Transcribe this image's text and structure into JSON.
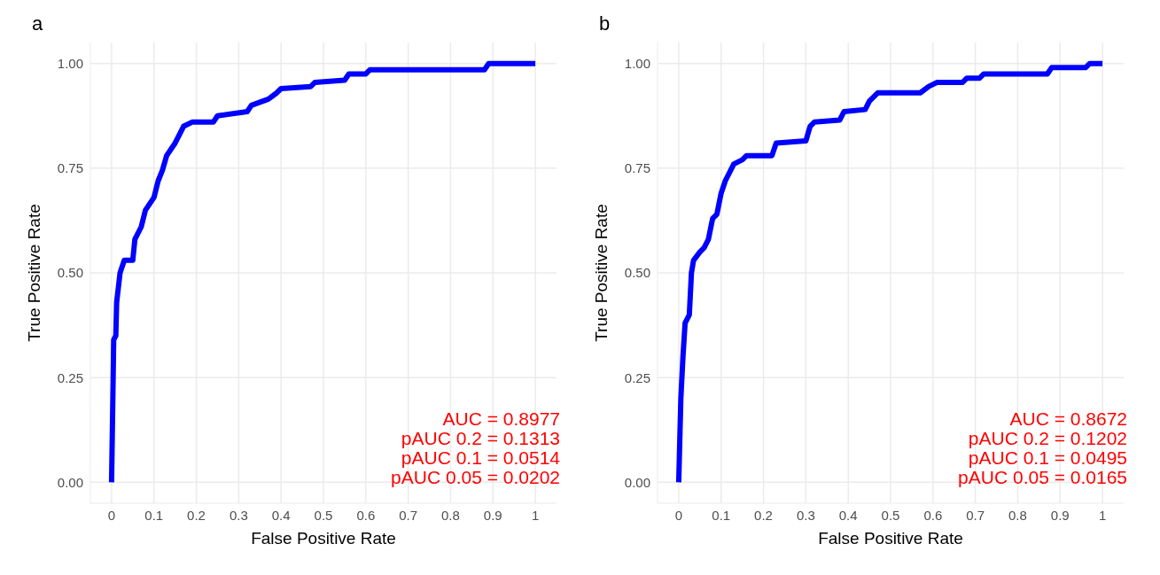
{
  "chart_data": [
    {
      "type": "line",
      "title": "a",
      "xlabel": "False Positive Rate",
      "ylabel": "True Positive Rate",
      "x": [
        0,
        0.003,
        0.005,
        0.01,
        0.012,
        0.02,
        0.03,
        0.05,
        0.055,
        0.07,
        0.08,
        0.1,
        0.11,
        0.12,
        0.13,
        0.15,
        0.17,
        0.19,
        0.24,
        0.25,
        0.32,
        0.33,
        0.37,
        0.39,
        0.4,
        0.47,
        0.48,
        0.55,
        0.56,
        0.6,
        0.61,
        0.88,
        0.89,
        1
      ],
      "series": [
        {
          "color": "#0000ff",
          "values": [
            0,
            0.2,
            0.34,
            0.35,
            0.43,
            0.5,
            0.53,
            0.53,
            0.58,
            0.61,
            0.65,
            0.68,
            0.72,
            0.745,
            0.78,
            0.81,
            0.85,
            0.86,
            0.86,
            0.875,
            0.885,
            0.9,
            0.915,
            0.93,
            0.94,
            0.945,
            0.955,
            0.96,
            0.975,
            0.975,
            0.985,
            0.985,
            1,
            1
          ]
        }
      ],
      "xlim": [
        -0.05,
        1.05
      ],
      "ylim": [
        -0.05,
        1.05
      ],
      "xticks": [
        0,
        0.1,
        0.2,
        0.3,
        0.4,
        0.5,
        0.6,
        0.7,
        0.8,
        0.9,
        1
      ],
      "yticks": [
        {
          "value": 0,
          "label": "0.00"
        },
        {
          "value": 0.25,
          "label": "0.25"
        },
        {
          "value": 0.5,
          "label": "0.50"
        },
        {
          "value": 0.75,
          "label": "0.75"
        },
        {
          "value": 1,
          "label": "1.00"
        }
      ],
      "grid": true,
      "marker": "none",
      "line_style": "solid",
      "annotations": [
        "AUC = 0.8977",
        "pAUC 0.2 = 0.1313",
        "pAUC 0.1 = 0.0514",
        "pAUC 0.05 = 0.0202"
      ]
    },
    {
      "type": "line",
      "title": "b",
      "xlabel": "False Positive Rate",
      "ylabel": "True Positive Rate",
      "x": [
        0,
        0.005,
        0.01,
        0.015,
        0.025,
        0.03,
        0.035,
        0.05,
        0.06,
        0.07,
        0.08,
        0.09,
        0.1,
        0.11,
        0.12,
        0.13,
        0.15,
        0.16,
        0.22,
        0.23,
        0.3,
        0.31,
        0.32,
        0.38,
        0.39,
        0.44,
        0.45,
        0.46,
        0.47,
        0.57,
        0.59,
        0.61,
        0.67,
        0.68,
        0.71,
        0.72,
        0.87,
        0.88,
        0.96,
        0.97,
        1
      ],
      "series": [
        {
          "color": "#0000ff",
          "values": [
            0,
            0.2,
            0.3,
            0.38,
            0.4,
            0.5,
            0.53,
            0.55,
            0.56,
            0.58,
            0.63,
            0.64,
            0.69,
            0.72,
            0.74,
            0.76,
            0.77,
            0.78,
            0.78,
            0.81,
            0.815,
            0.85,
            0.86,
            0.865,
            0.885,
            0.89,
            0.91,
            0.92,
            0.93,
            0.93,
            0.945,
            0.955,
            0.955,
            0.965,
            0.965,
            0.975,
            0.975,
            0.99,
            0.99,
            1,
            1
          ]
        }
      ],
      "xlim": [
        -0.05,
        1.05
      ],
      "ylim": [
        -0.05,
        1.05
      ],
      "xticks": [
        0,
        0.1,
        0.2,
        0.3,
        0.4,
        0.5,
        0.6,
        0.7,
        0.8,
        0.9,
        1
      ],
      "yticks": [
        {
          "value": 0,
          "label": "0.00"
        },
        {
          "value": 0.25,
          "label": "0.25"
        },
        {
          "value": 0.5,
          "label": "0.50"
        },
        {
          "value": 0.75,
          "label": "0.75"
        },
        {
          "value": 1,
          "label": "1.00"
        }
      ],
      "grid": true,
      "marker": "none",
      "line_style": "solid",
      "annotations": [
        "AUC = 0.8672",
        "pAUC 0.2 = 0.1202",
        "pAUC 0.1 = 0.0495",
        "pAUC 0.05 = 0.0165"
      ]
    }
  ]
}
